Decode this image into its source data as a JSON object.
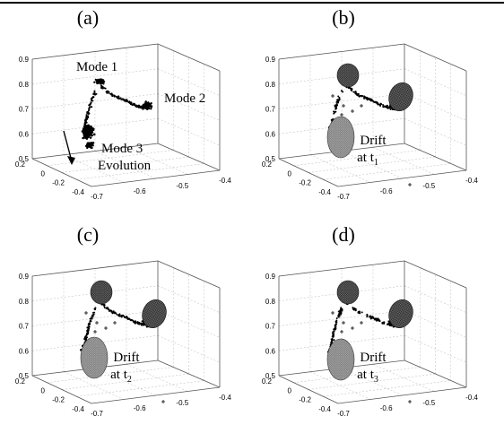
{
  "chart_data": [
    {
      "type": "scatter",
      "panel": "(a)",
      "annotations": {
        "mode1": "Mode 1",
        "mode2": "Mode 2",
        "mode3": "Mode 3",
        "evolution": "Evolution"
      },
      "x_ticks": [
        "-0.7",
        "-0.6",
        "-0.5",
        "-0.4"
      ],
      "y_ticks": [
        "0.2",
        "0",
        "-0.2",
        "-0.4"
      ],
      "z_ticks": [
        "0.9",
        "0.8",
        "0.7",
        "0.6",
        "0.5"
      ],
      "zlim": [
        0.5,
        0.9
      ],
      "grid": true,
      "clusters": [
        {
          "name": "mode1",
          "center": [
            -0.62,
            0.05,
            0.78
          ]
        },
        {
          "name": "mode2",
          "center": [
            -0.47,
            -0.15,
            0.73
          ]
        },
        {
          "name": "mode3",
          "center": [
            -0.72,
            -0.05,
            0.62
          ]
        }
      ]
    },
    {
      "type": "scatter",
      "panel": "(b)",
      "annotations": {
        "drift": "Drift",
        "at": "at t",
        "sub": "1"
      },
      "x_ticks": [
        "-0.7",
        "-0.6",
        "-0.5",
        "-0.4"
      ],
      "y_ticks": [
        "0.2",
        "0",
        "-0.2",
        "-0.4"
      ],
      "z_ticks": [
        "0.9",
        "0.8",
        "0.7",
        "0.6",
        "0.5"
      ],
      "zlim": [
        0.5,
        0.9
      ],
      "grid": true,
      "ellipsoids": 3
    },
    {
      "type": "scatter",
      "panel": "(c)",
      "annotations": {
        "drift": "Drift",
        "at": "at t",
        "sub": "2"
      },
      "x_ticks": [
        "-0.7",
        "-0.6",
        "-0.5",
        "-0.4"
      ],
      "y_ticks": [
        "0.2",
        "0",
        "-0.2",
        "-0.4"
      ],
      "z_ticks": [
        "0.9",
        "0.8",
        "0.7",
        "0.6",
        "0.5"
      ],
      "zlim": [
        0.5,
        0.9
      ],
      "grid": true,
      "ellipsoids": 3
    },
    {
      "type": "scatter",
      "panel": "(d)",
      "annotations": {
        "drift": "Drift",
        "at": "at t",
        "sub": "3"
      },
      "x_ticks": [
        "-0.7",
        "-0.6",
        "-0.5",
        "-0.4"
      ],
      "y_ticks": [
        "0.2",
        "0",
        "-0.2",
        "-0.4"
      ],
      "z_ticks": [
        "0.9",
        "0.8",
        "0.7",
        "0.6",
        "0.5"
      ],
      "zlim": [
        0.5,
        0.9
      ],
      "grid": true,
      "ellipsoids": 3
    }
  ]
}
